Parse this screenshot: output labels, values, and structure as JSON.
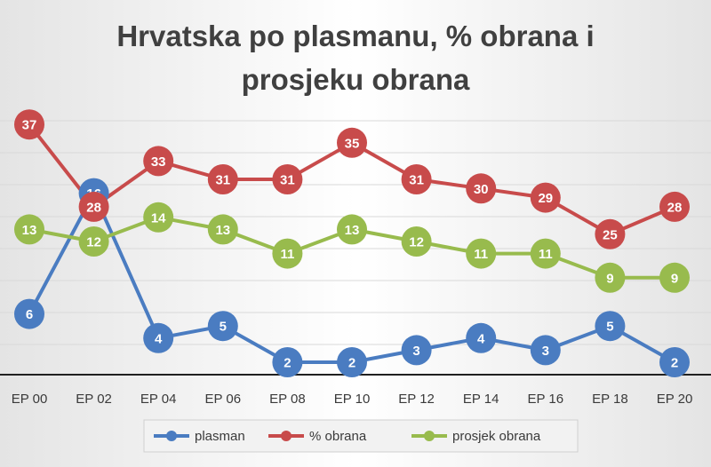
{
  "title_lines": [
    "Hrvatska po plasmanu, % obrana i",
    "prosjeku obrana"
  ],
  "chart_data": {
    "type": "line",
    "title": "Hrvatska po plasmanu, % obrana i prosjeku obrana",
    "categories": [
      "EP 00",
      "EP 02",
      "EP 04",
      "EP 06",
      "EP 08",
      "EP 10",
      "EP 12",
      "EP 14",
      "EP 16",
      "EP 18",
      "EP 20"
    ],
    "series": [
      {
        "name": "plasman",
        "color": "#4a7cc1",
        "values": [
          6,
          16,
          4,
          5,
          2,
          2,
          3,
          4,
          3,
          5,
          2
        ]
      },
      {
        "name": "% obrana",
        "color": "#c84b4b",
        "values": [
          37,
          28,
          33,
          31,
          31,
          35,
          31,
          30,
          29,
          25,
          28
        ]
      },
      {
        "name": "prosjek obrana",
        "color": "#98bb4d",
        "values": [
          13,
          12,
          14,
          13,
          11,
          13,
          12,
          11,
          11,
          9,
          9
        ]
      }
    ],
    "grid": true,
    "legend": "bottom",
    "data_labels": true
  }
}
